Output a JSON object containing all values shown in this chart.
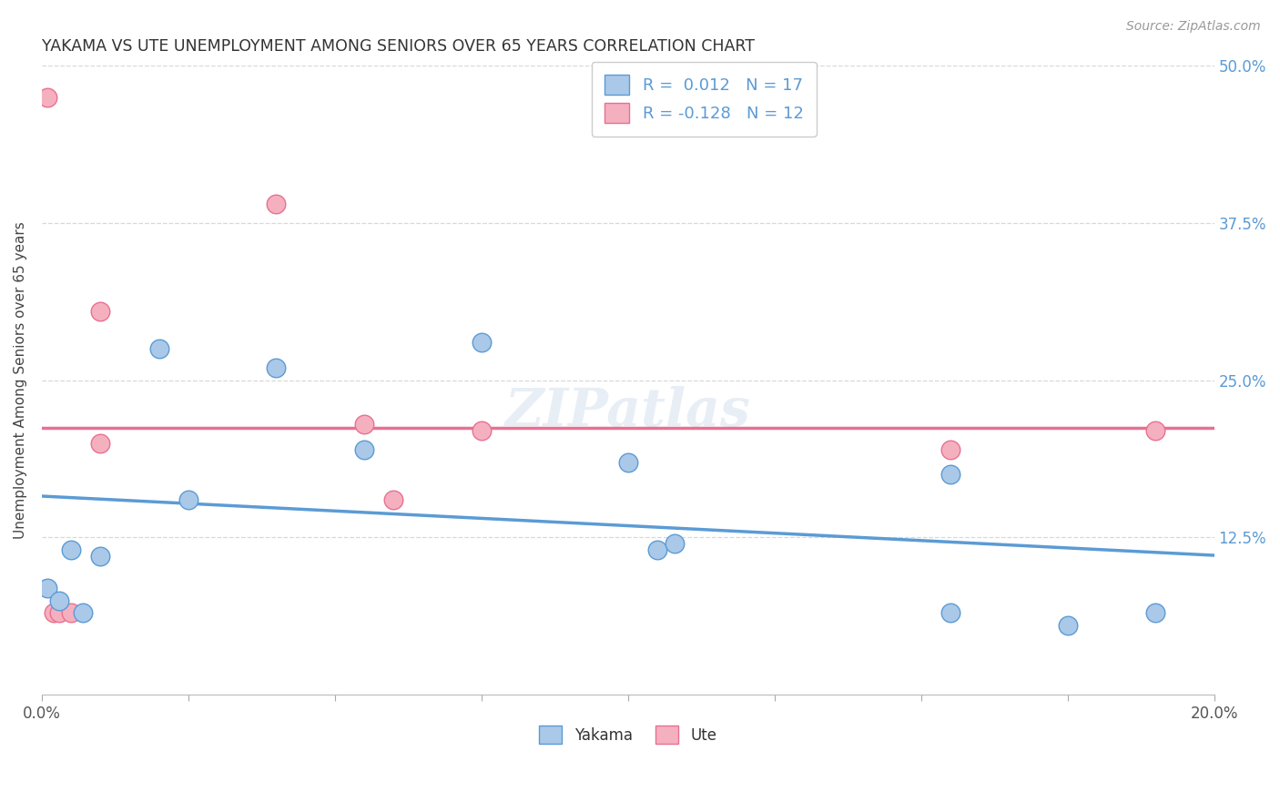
{
  "title": "YAKAMA VS UTE UNEMPLOYMENT AMONG SENIORS OVER 65 YEARS CORRELATION CHART",
  "source": "Source: ZipAtlas.com",
  "ylabel": "Unemployment Among Seniors over 65 years",
  "xlim": [
    0.0,
    0.2
  ],
  "ylim": [
    0.0,
    0.5
  ],
  "xticks": [
    0.0,
    0.025,
    0.05,
    0.075,
    0.1,
    0.125,
    0.15,
    0.175,
    0.2
  ],
  "xticklabels": [
    "0.0%",
    "",
    "",
    "",
    "",
    "",
    "",
    "",
    "20.0%"
  ],
  "yticks": [
    0.0,
    0.125,
    0.25,
    0.375,
    0.5
  ],
  "yticklabels_right": [
    "",
    "12.5%",
    "25.0%",
    "37.5%",
    "50.0%"
  ],
  "yakama_color": "#aac8e8",
  "ute_color": "#f5b0c0",
  "yakama_edge_color": "#5b9bd5",
  "ute_edge_color": "#e87090",
  "legend_R_yakama": " 0.012",
  "legend_N_yakama": "17",
  "legend_R_ute": "-0.128",
  "legend_N_ute": "12",
  "yakama_x": [
    0.001,
    0.003,
    0.005,
    0.007,
    0.01,
    0.02,
    0.025,
    0.04,
    0.055,
    0.075,
    0.1,
    0.105,
    0.108,
    0.155,
    0.155,
    0.175,
    0.19
  ],
  "yakama_y": [
    0.085,
    0.075,
    0.115,
    0.065,
    0.11,
    0.275,
    0.155,
    0.26,
    0.195,
    0.28,
    0.185,
    0.115,
    0.12,
    0.175,
    0.065,
    0.055,
    0.065
  ],
  "ute_x": [
    0.001,
    0.002,
    0.003,
    0.005,
    0.01,
    0.01,
    0.04,
    0.055,
    0.06,
    0.075,
    0.155,
    0.19
  ],
  "ute_y": [
    0.475,
    0.065,
    0.065,
    0.065,
    0.305,
    0.2,
    0.39,
    0.215,
    0.155,
    0.21,
    0.195,
    0.21
  ],
  "background_color": "#ffffff",
  "grid_color": "#d8d8d8",
  "marker_size": 220
}
